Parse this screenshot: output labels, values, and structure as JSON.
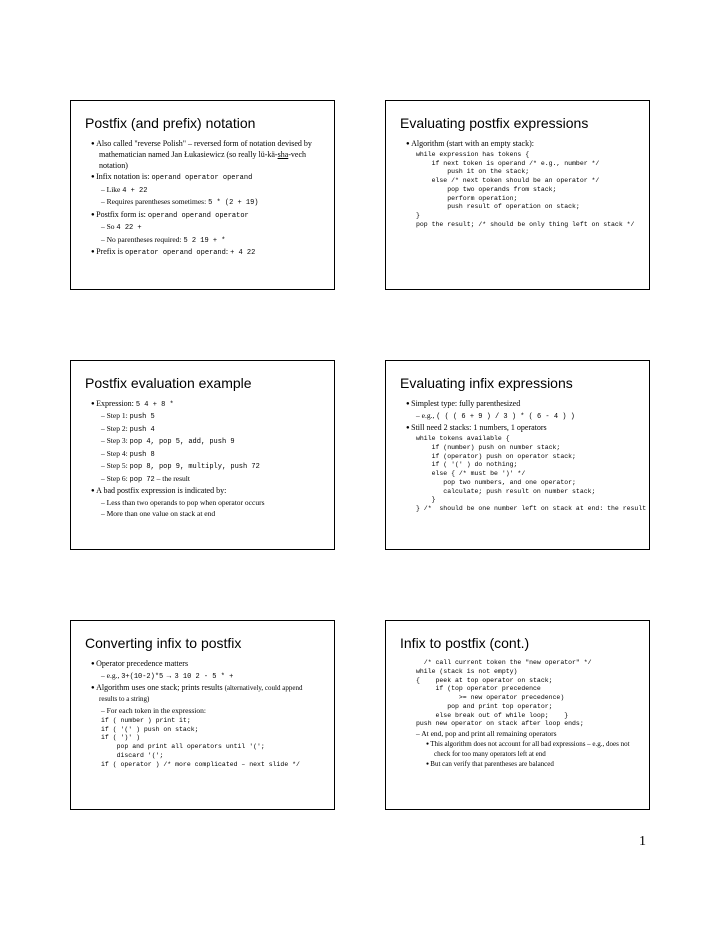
{
  "page_number": "1",
  "slides": [
    {
      "title": "Postfix (and prefix) notation",
      "lines": [
        {
          "lvl": 1,
          "html": "Also called \"reverse Polish\" – reversed form of notation devised by mathematician named Jan Łukasiewicz (so really lü-kä-<span class='u'>sha</span>-vech notation)"
        },
        {
          "lvl": 1,
          "html": "Infix notation is: <span class='code'>operand operator operand</span>"
        },
        {
          "lvl": 2,
          "html": "Like <span class='code'>4 + 22</span>"
        },
        {
          "lvl": 2,
          "html": "Requires parentheses sometimes: <span class='code'>5 * (2 + 19)</span>"
        },
        {
          "lvl": 1,
          "html": "Postfix form is: <span class='code'>operand operand operator</span>"
        },
        {
          "lvl": 2,
          "html": "So <span class='code'>4 22 +</span>"
        },
        {
          "lvl": 2,
          "html": "No parentheses required: <span class='code'>5 2 19 + *</span>"
        },
        {
          "lvl": 1,
          "html": "Prefix is <span class='code'>operator operand operand</span>: <span class='code'>+ 4 22</span>"
        }
      ]
    },
    {
      "title": "Evaluating postfix expressions",
      "lines": [
        {
          "lvl": 1,
          "html": "Algorithm (start with an empty stack):"
        },
        {
          "lvl": 0,
          "pre": "while expression has tokens {\n    if next token is operand /* e.g., number */\n        push it on the stack;\n    else /* next token should be an operator */\n        pop two operands from stack;\n        perform operation;\n        push result of operation on stack;\n}\npop the result; /* should be only thing left on stack */"
        }
      ]
    },
    {
      "title": "Postfix evaluation example",
      "lines": [
        {
          "lvl": 1,
          "html": "Expression: <span class='code'>5 4 + 8 *</span>"
        },
        {
          "lvl": 2,
          "html": "Step 1: <span class='code'>push 5</span>"
        },
        {
          "lvl": 2,
          "html": "Step 2: <span class='code'>push 4</span>"
        },
        {
          "lvl": 2,
          "html": "Step 3: <span class='code'>pop 4, pop 5, add, push 9</span>"
        },
        {
          "lvl": 2,
          "html": "Step 4: <span class='code'>push 8</span>"
        },
        {
          "lvl": 2,
          "html": "Step 5: <span class='code'>pop 8, pop 9, multiply, push 72</span>"
        },
        {
          "lvl": 2,
          "html": "Step 6: <span class='code'>pop 72</span> – the result"
        },
        {
          "lvl": 1,
          "html": "A bad postfix expression is indicated by:"
        },
        {
          "lvl": 2,
          "html": "Less than two operands to pop when operator occurs"
        },
        {
          "lvl": 2,
          "html": "More than one value on stack at end"
        }
      ]
    },
    {
      "title": "Evaluating infix expressions",
      "lines": [
        {
          "lvl": 1,
          "html": "Simplest type: fully parenthesized"
        },
        {
          "lvl": 2,
          "html": "e.g., <span class='code'>( ( ( 6 + 9 ) / 3 ) * ( 6 - 4 ) )</span>"
        },
        {
          "lvl": 1,
          "html": "Still need 2 stacks: 1 numbers, 1 operators"
        },
        {
          "lvl": 0,
          "pre": "while tokens available {\n    if (number) push on number stack;\n    if (operator) push on operator stack;\n    if ( '(' ) do nothing;\n    else { /* must be ')' */\n       pop two numbers, and one operator;\n       calculate; push result on number stack;\n    }\n} /*  should be one number left on stack at end: the result */"
        }
      ]
    },
    {
      "title": "Converting infix to postfix",
      "lines": [
        {
          "lvl": 1,
          "html": "Operator precedence matters"
        },
        {
          "lvl": 2,
          "html": "e.g., <span class='code'>3+(10-2)*5</span> &rarr; <span class='code'>3 10 2 - 5 * +</span>"
        },
        {
          "lvl": 1,
          "html": "Algorithm uses one stack; prints results <span class='note'>(alternatively, could append results to a string)</span>"
        },
        {
          "lvl": 2,
          "html": "For each token in the expression:"
        },
        {
          "lvl": 0,
          "pre": "if ( number ) print it;\nif ( '(' ) push on stack;\nif ( ')' )\n    pop and print all operators until '(';\n    discard '(';\nif ( operator ) /* more complicated – next slide */"
        }
      ]
    },
    {
      "title": "Infix to postfix (cont.)",
      "lines": [
        {
          "lvl": 0,
          "pre": "  /* call current token the \"new operator\" */\nwhile (stack is not empty)\n{    peek at top operator on stack;\n     if (top operator precedence\n           >= new operator precedence)\n        pop and print top operator;\n     else break out of while loop;    }\npush new operator on stack after loop ends;"
        },
        {
          "lvl": 2,
          "html": "At end, pop and print all remaining operators"
        },
        {
          "lvl": 3,
          "html": "This algorithm does not account for all bad expressions – e.g., does not check for too many operators left at end"
        },
        {
          "lvl": 3,
          "html": "But can verify that parentheses are balanced"
        }
      ]
    }
  ]
}
